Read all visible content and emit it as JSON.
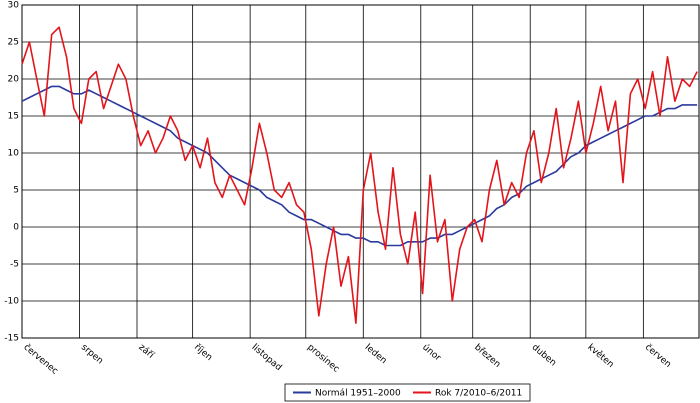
{
  "chart_data": {
    "type": "line",
    "x": [
      0,
      4,
      8,
      12,
      16,
      20,
      24,
      28,
      32,
      36,
      40,
      44,
      48,
      52,
      56,
      60,
      64,
      68,
      72,
      76,
      80,
      84,
      88,
      92,
      96,
      100,
      104,
      108,
      112,
      116,
      120,
      124,
      128,
      132,
      136,
      140,
      144,
      148,
      152,
      156,
      160,
      164,
      168,
      172,
      176,
      180,
      184,
      188,
      192,
      196,
      200,
      204,
      208,
      212,
      216,
      220,
      224,
      228,
      232,
      236,
      240,
      244,
      248,
      252,
      256,
      260,
      264,
      268,
      272,
      276,
      280,
      284,
      288,
      292,
      296,
      300,
      304,
      308,
      312,
      316,
      320,
      324,
      328,
      332,
      336,
      340,
      344,
      348,
      352,
      356,
      360,
      364
    ],
    "xlim": [
      0,
      365
    ],
    "xticks": [
      {
        "value": 0,
        "label": "červenec"
      },
      {
        "value": 31,
        "label": "srpen"
      },
      {
        "value": 62,
        "label": "září"
      },
      {
        "value": 92,
        "label": "říjen"
      },
      {
        "value": 123,
        "label": "listopad"
      },
      {
        "value": 153,
        "label": "prosinec"
      },
      {
        "value": 184,
        "label": "leden"
      },
      {
        "value": 215,
        "label": "únor"
      },
      {
        "value": 243,
        "label": "březen"
      },
      {
        "value": 274,
        "label": "duben"
      },
      {
        "value": 304,
        "label": "květen"
      },
      {
        "value": 335,
        "label": "červen"
      }
    ],
    "ylim": [
      -15,
      30
    ],
    "yticks": [
      -15,
      -10,
      -5,
      0,
      5,
      10,
      15,
      20,
      25,
      30
    ],
    "grid": true,
    "series": [
      {
        "name": "Normál 1951–2000",
        "color": "#2b3b9c",
        "values": [
          17,
          17.5,
          18,
          18.5,
          19,
          19,
          18.5,
          18,
          18,
          18.5,
          18,
          17.5,
          17,
          16.5,
          16,
          15.5,
          15,
          14.5,
          14,
          13.5,
          13,
          12,
          11.5,
          11,
          10.5,
          10,
          9,
          8,
          7,
          6.5,
          6,
          5.5,
          5,
          4,
          3.5,
          3,
          2,
          1.5,
          1,
          1,
          0.5,
          0,
          -0.5,
          -1,
          -1,
          -1.5,
          -1.5,
          -2,
          -2,
          -2.5,
          -2.5,
          -2.5,
          -2,
          -2,
          -2,
          -1.5,
          -1.5,
          -1,
          -1,
          -0.5,
          0,
          0.5,
          1,
          1.5,
          2.5,
          3,
          4,
          4.5,
          5.5,
          6,
          6.5,
          7,
          7.5,
          8.5,
          9.5,
          10,
          11,
          11.5,
          12,
          12.5,
          13,
          13.5,
          14,
          14.5,
          15,
          15,
          15.5,
          16,
          16,
          16.5,
          16.5,
          16.5
        ]
      },
      {
        "name": "Rok 7/2010–6/2011",
        "color": "#e3151b",
        "values": [
          22,
          25,
          20,
          15,
          26,
          27,
          23,
          16,
          14,
          20,
          21,
          16,
          19,
          22,
          20,
          15,
          11,
          13,
          10,
          12,
          15,
          13,
          9,
          11,
          8,
          12,
          6,
          4,
          7,
          5,
          3,
          8,
          14,
          10,
          5,
          4,
          6,
          3,
          2,
          -3,
          -12,
          -5,
          0,
          -8,
          -4,
          -13,
          5,
          10,
          2,
          -3,
          8,
          -1,
          -5,
          2,
          -9,
          7,
          -2,
          1,
          -10,
          -3,
          0,
          1,
          -2,
          5,
          9,
          3,
          6,
          4,
          10,
          13,
          6,
          10,
          16,
          8,
          12,
          17,
          10,
          14,
          19,
          13,
          17,
          6,
          18,
          20,
          16,
          21,
          15,
          23,
          17,
          20,
          19,
          21
        ]
      }
    ]
  }
}
